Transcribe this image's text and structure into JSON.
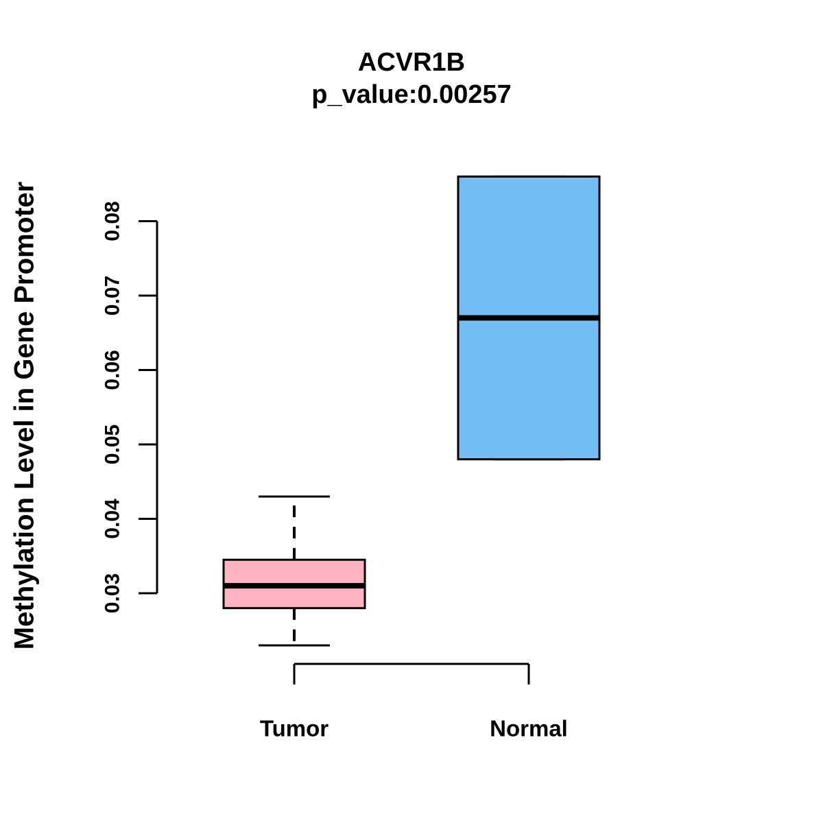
{
  "chart_data": {
    "type": "boxplot",
    "title": "ACVR1B",
    "subtitle": "p_value:0.00257",
    "xlabel": "",
    "ylabel": "Methylation Level in Gene Promoter",
    "categories": [
      "Tumor",
      "Normal"
    ],
    "yticks": [
      0.03,
      0.04,
      0.05,
      0.06,
      0.07,
      0.08
    ],
    "ytick_labels": [
      "0.03",
      "0.04",
      "0.05",
      "0.06",
      "0.07",
      "0.08"
    ],
    "ylim": [
      0.022,
      0.088
    ],
    "grid": false,
    "legend": "none",
    "series": [
      {
        "name": "Tumor",
        "fill_color": "#FFB2C1",
        "whisker_low": 0.023,
        "q1": 0.028,
        "median": 0.031,
        "q3": 0.0345,
        "whisker_high": 0.043
      },
      {
        "name": "Normal",
        "fill_color": "#74BEF8",
        "whisker_low": 0.048,
        "q1": 0.048,
        "median": 0.067,
        "q3": 0.086,
        "whisker_high": 0.086
      }
    ],
    "colors": {
      "box_border": "#000000",
      "median_line": "#000000",
      "axis": "#000000",
      "text": "#000000",
      "background": "#FFFFFF"
    }
  }
}
